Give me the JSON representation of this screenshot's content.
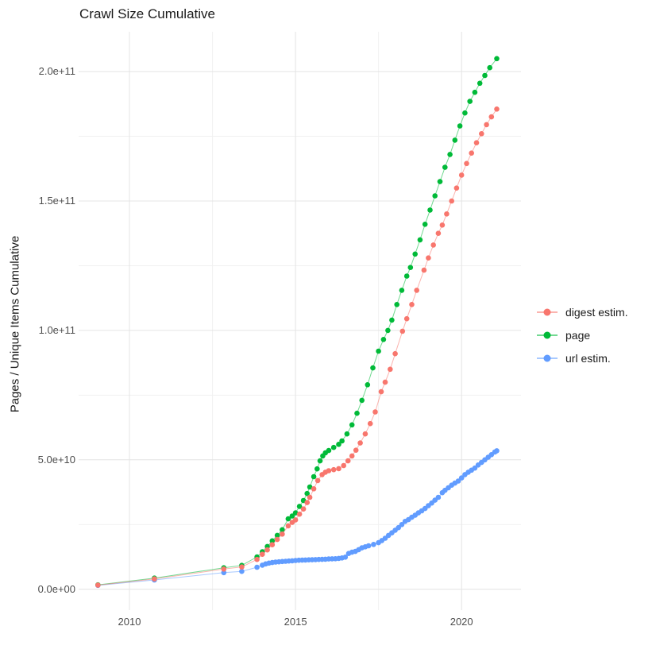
{
  "title": "Crawl Size Cumulative",
  "y_axis": {
    "label": "Pages / Unique Items Cumulative",
    "ticks": [
      {
        "label": "0.0e+00",
        "value_billions": 0
      },
      {
        "label": "5.0e+10",
        "value_billions": 50
      },
      {
        "label": "1.0e+11",
        "value_billions": 100
      },
      {
        "label": "1.5e+11",
        "value_billions": 150
      },
      {
        "label": "2.0e+11",
        "value_billions": 200
      }
    ]
  },
  "x_axis": {
    "label": "",
    "ticks": [
      {
        "label": "2010",
        "value": 2010
      },
      {
        "label": "2015",
        "value": 2015
      },
      {
        "label": "2020",
        "value": 2020
      }
    ]
  },
  "colors": {
    "digest": "#F8766D",
    "page": "#00BA38",
    "url": "#619CFF",
    "grid_major": "#E4E4E4",
    "grid_minor": "#F1F1F1",
    "tick_text": "#4d4d4d"
  },
  "chart_data": {
    "type": "scatter",
    "title": "Crawl Size Cumulative",
    "xlabel": "",
    "ylabel": "Pages / Unique Items Cumulative",
    "xlim": [
      2008.47,
      2021.79
    ],
    "ylim": [
      -8000000000,
      215000000000
    ],
    "grid": "on",
    "legend_position": "right",
    "value_unit": "billions (multiply by 1e9)",
    "x_major_gridlines": [
      2010,
      2015,
      2020
    ],
    "x_minor_gridlines": [
      2012.5,
      2017.5
    ],
    "y_major_gridlines_billions": [
      0,
      50,
      100,
      150,
      200
    ],
    "y_minor_gridlines_billions": [
      25,
      75,
      125,
      175
    ],
    "draw_order": [
      2,
      1,
      0
    ],
    "series": [
      {
        "name": "digest estim.",
        "color": "#F8766D",
        "points": [
          [
            2009.05,
            1.6
          ],
          [
            2010.75,
            4.0
          ],
          [
            2012.84,
            7.8
          ],
          [
            2013.38,
            8.6
          ],
          [
            2013.84,
            11.5
          ],
          [
            2014.0,
            13.5
          ],
          [
            2014.15,
            15.2
          ],
          [
            2014.3,
            17.2
          ],
          [
            2014.45,
            19.2
          ],
          [
            2014.6,
            21.3
          ],
          [
            2014.78,
            24.5
          ],
          [
            2014.9,
            25.8
          ],
          [
            2015.0,
            26.8
          ],
          [
            2015.12,
            29.0
          ],
          [
            2015.24,
            31.0
          ],
          [
            2015.35,
            33.5
          ],
          [
            2015.43,
            35.5
          ],
          [
            2015.55,
            38.8
          ],
          [
            2015.67,
            42.0
          ],
          [
            2015.8,
            44.3
          ],
          [
            2015.9,
            45.2
          ],
          [
            2016.0,
            45.8
          ],
          [
            2016.15,
            46.2
          ],
          [
            2016.3,
            46.6
          ],
          [
            2016.45,
            47.8
          ],
          [
            2016.58,
            49.6
          ],
          [
            2016.7,
            51.5
          ],
          [
            2016.82,
            53.7
          ],
          [
            2016.95,
            56.5
          ],
          [
            2017.1,
            60.0
          ],
          [
            2017.25,
            64.0
          ],
          [
            2017.4,
            68.5
          ],
          [
            2017.58,
            76.3
          ],
          [
            2017.7,
            80.0
          ],
          [
            2017.85,
            85.0
          ],
          [
            2018.0,
            91.0
          ],
          [
            2018.22,
            99.7
          ],
          [
            2018.35,
            104.5
          ],
          [
            2018.5,
            110.0
          ],
          [
            2018.65,
            115.5
          ],
          [
            2018.87,
            123.3
          ],
          [
            2019.0,
            128.0
          ],
          [
            2019.15,
            133.0
          ],
          [
            2019.3,
            137.5
          ],
          [
            2019.42,
            140.7
          ],
          [
            2019.55,
            145.0
          ],
          [
            2019.7,
            150.0
          ],
          [
            2019.85,
            155.0
          ],
          [
            2020.0,
            160.0
          ],
          [
            2020.15,
            164.5
          ],
          [
            2020.3,
            168.5
          ],
          [
            2020.45,
            172.5
          ],
          [
            2020.6,
            176.0
          ],
          [
            2020.75,
            179.5
          ],
          [
            2020.9,
            182.5
          ],
          [
            2021.06,
            185.5
          ]
        ]
      },
      {
        "name": "page",
        "color": "#00BA38",
        "points": [
          [
            2009.05,
            1.7
          ],
          [
            2010.75,
            4.3
          ],
          [
            2012.84,
            8.3
          ],
          [
            2013.38,
            9.2
          ],
          [
            2013.84,
            12.5
          ],
          [
            2014.0,
            14.5
          ],
          [
            2014.15,
            16.5
          ],
          [
            2014.3,
            18.7
          ],
          [
            2014.45,
            20.8
          ],
          [
            2014.6,
            23.0
          ],
          [
            2014.78,
            27.2
          ],
          [
            2014.9,
            28.3
          ],
          [
            2015.0,
            29.5
          ],
          [
            2015.12,
            32.0
          ],
          [
            2015.24,
            34.3
          ],
          [
            2015.35,
            37.0
          ],
          [
            2015.43,
            39.5
          ],
          [
            2015.55,
            43.5
          ],
          [
            2015.65,
            46.5
          ],
          [
            2015.74,
            49.6
          ],
          [
            2015.82,
            51.5
          ],
          [
            2015.9,
            52.7
          ],
          [
            2016.0,
            53.6
          ],
          [
            2016.15,
            54.8
          ],
          [
            2016.3,
            56.0
          ],
          [
            2016.4,
            57.3
          ],
          [
            2016.55,
            60.0
          ],
          [
            2016.7,
            63.5
          ],
          [
            2016.85,
            68.0
          ],
          [
            2017.0,
            73.0
          ],
          [
            2017.17,
            79.0
          ],
          [
            2017.33,
            85.5
          ],
          [
            2017.5,
            92.0
          ],
          [
            2017.65,
            96.5
          ],
          [
            2017.78,
            100.0
          ],
          [
            2017.9,
            104.0
          ],
          [
            2018.05,
            110.0
          ],
          [
            2018.2,
            115.5
          ],
          [
            2018.35,
            121.0
          ],
          [
            2018.46,
            124.3
          ],
          [
            2018.6,
            129.5
          ],
          [
            2018.75,
            135.0
          ],
          [
            2018.9,
            141.0
          ],
          [
            2019.05,
            146.5
          ],
          [
            2019.2,
            152.0
          ],
          [
            2019.35,
            157.5
          ],
          [
            2019.5,
            163.0
          ],
          [
            2019.65,
            168.0
          ],
          [
            2019.8,
            173.5
          ],
          [
            2019.95,
            179.0
          ],
          [
            2020.1,
            184.0
          ],
          [
            2020.25,
            188.5
          ],
          [
            2020.4,
            192.0
          ],
          [
            2020.55,
            195.5
          ],
          [
            2020.7,
            198.5
          ],
          [
            2020.85,
            201.5
          ],
          [
            2021.06,
            205.0
          ]
        ]
      },
      {
        "name": "url estim.",
        "color": "#619CFF",
        "points": [
          [
            2009.05,
            1.5
          ],
          [
            2010.75,
            3.6
          ],
          [
            2012.84,
            6.4
          ],
          [
            2013.38,
            6.9
          ],
          [
            2013.84,
            8.5
          ],
          [
            2014.0,
            9.3
          ],
          [
            2014.1,
            9.8
          ],
          [
            2014.2,
            10.1
          ],
          [
            2014.3,
            10.3
          ],
          [
            2014.4,
            10.5
          ],
          [
            2014.5,
            10.6
          ],
          [
            2014.6,
            10.7
          ],
          [
            2014.7,
            10.8
          ],
          [
            2014.8,
            10.9
          ],
          [
            2014.9,
            11.0
          ],
          [
            2015.0,
            11.1
          ],
          [
            2015.1,
            11.2
          ],
          [
            2015.2,
            11.25
          ],
          [
            2015.3,
            11.3
          ],
          [
            2015.4,
            11.35
          ],
          [
            2015.5,
            11.4
          ],
          [
            2015.6,
            11.45
          ],
          [
            2015.7,
            11.5
          ],
          [
            2015.8,
            11.55
          ],
          [
            2015.9,
            11.6
          ],
          [
            2016.0,
            11.7
          ],
          [
            2016.1,
            11.75
          ],
          [
            2016.2,
            11.8
          ],
          [
            2016.3,
            11.9
          ],
          [
            2016.4,
            12.1
          ],
          [
            2016.5,
            12.4
          ],
          [
            2016.6,
            13.8
          ],
          [
            2016.7,
            14.3
          ],
          [
            2016.8,
            14.6
          ],
          [
            2016.9,
            15.3
          ],
          [
            2017.0,
            16.0
          ],
          [
            2017.1,
            16.4
          ],
          [
            2017.2,
            16.8
          ],
          [
            2017.35,
            17.3
          ],
          [
            2017.5,
            18.0
          ],
          [
            2017.6,
            18.8
          ],
          [
            2017.7,
            19.7
          ],
          [
            2017.8,
            20.8
          ],
          [
            2017.9,
            21.8
          ],
          [
            2018.0,
            22.8
          ],
          [
            2018.1,
            23.8
          ],
          [
            2018.2,
            25.0
          ],
          [
            2018.3,
            26.2
          ],
          [
            2018.4,
            26.9
          ],
          [
            2018.5,
            27.8
          ],
          [
            2018.6,
            28.6
          ],
          [
            2018.7,
            29.5
          ],
          [
            2018.8,
            30.3
          ],
          [
            2018.9,
            31.2
          ],
          [
            2019.0,
            32.3
          ],
          [
            2019.1,
            33.3
          ],
          [
            2019.2,
            34.4
          ],
          [
            2019.3,
            35.5
          ],
          [
            2019.42,
            37.3
          ],
          [
            2019.5,
            38.2
          ],
          [
            2019.6,
            39.2
          ],
          [
            2019.7,
            40.2
          ],
          [
            2019.8,
            41.0
          ],
          [
            2019.9,
            41.8
          ],
          [
            2020.0,
            43.0
          ],
          [
            2020.1,
            44.3
          ],
          [
            2020.2,
            45.2
          ],
          [
            2020.3,
            46.0
          ],
          [
            2020.4,
            46.8
          ],
          [
            2020.5,
            48.0
          ],
          [
            2020.6,
            49.0
          ],
          [
            2020.7,
            50.0
          ],
          [
            2020.8,
            51.0
          ],
          [
            2020.9,
            52.0
          ],
          [
            2021.0,
            53.0
          ],
          [
            2021.06,
            53.5
          ]
        ]
      }
    ]
  },
  "legend": {
    "items": [
      {
        "label": "digest estim.",
        "color": "#F8766D"
      },
      {
        "label": "page",
        "color": "#00BA38"
      },
      {
        "label": "url estim.",
        "color": "#619CFF"
      }
    ]
  }
}
